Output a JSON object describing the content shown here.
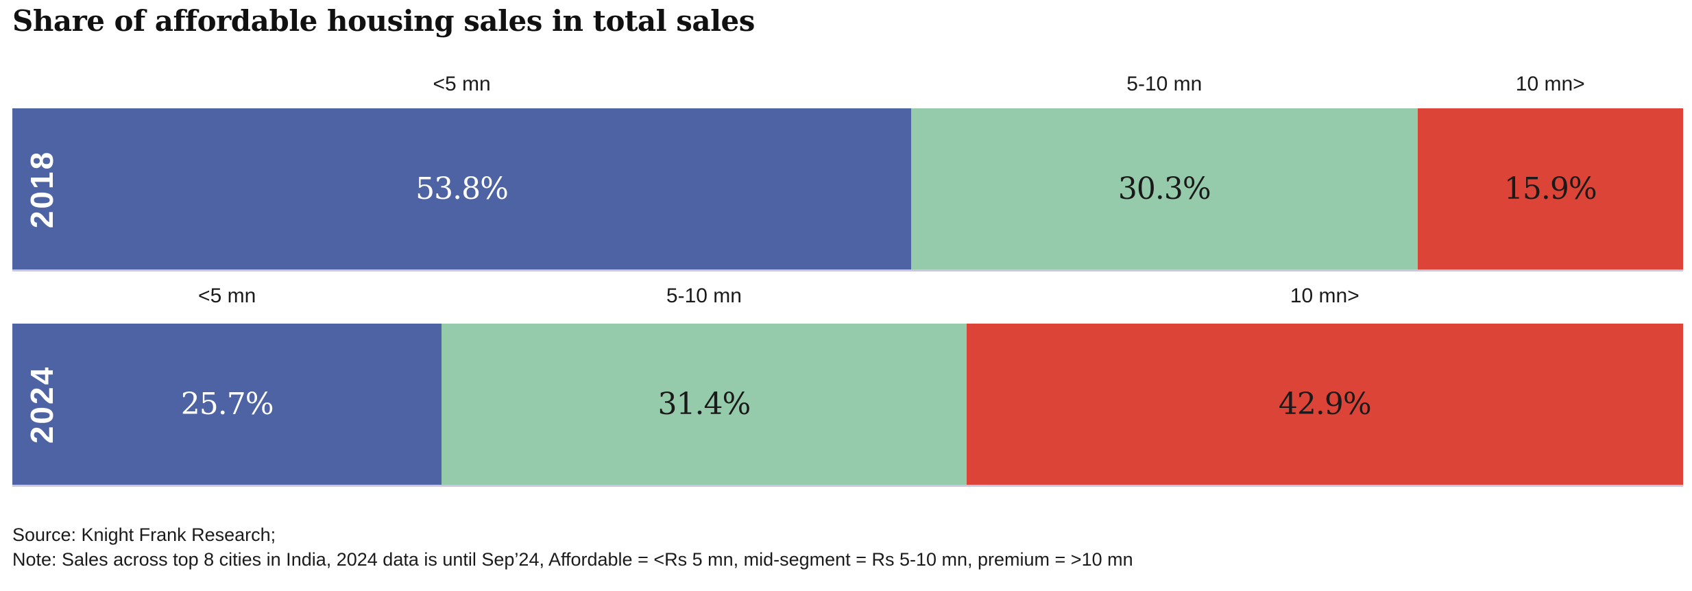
{
  "title": "Share of affordable housing sales in total sales",
  "palette": {
    "affordable_blue": "#4e63a4",
    "mid_segment_green": "#95cbaa",
    "premium_red": "#dc4437",
    "text_dark": "#1a1a1a",
    "text_light": "#ffffff",
    "baseline_line": "#ccc6df"
  },
  "chart_data": {
    "type": "bar",
    "variant": "horizontal-stacked-100pct",
    "title": "Share of affordable housing sales in total sales",
    "categories": [
      "2018",
      "2024"
    ],
    "series": [
      {
        "name": "<5 mn",
        "values": [
          53.8,
          25.7
        ],
        "color": "#4e63a4"
      },
      {
        "name": "5-10 mn",
        "values": [
          30.3,
          31.4
        ],
        "color": "#95cbaa"
      },
      {
        "name": "10 mn>",
        "values": [
          15.9,
          42.9
        ],
        "color": "#dc4437"
      }
    ],
    "value_suffix": "%",
    "xlim": [
      0,
      100
    ],
    "grid": false,
    "legend_position": "segment labels above each bar",
    "data_labels": "inside segments, centered"
  },
  "bars": [
    {
      "year": "2018",
      "segments": [
        {
          "bucket": "<5 mn",
          "value": 53.8,
          "label": "53.8%",
          "color": "#4e63a4",
          "text_color": "#ffffff"
        },
        {
          "bucket": "5-10 mn",
          "value": 30.3,
          "label": "30.3%",
          "color": "#95cbaa",
          "text_color": "#1a1a1a"
        },
        {
          "bucket": "10 mn>",
          "value": 15.9,
          "label": "15.9%",
          "color": "#dc4437",
          "text_color": "#1a1a1a"
        }
      ]
    },
    {
      "year": "2024",
      "segments": [
        {
          "bucket": "<5 mn",
          "value": 25.7,
          "label": "25.7%",
          "color": "#4e63a4",
          "text_color": "#ffffff"
        },
        {
          "bucket": "5-10 mn",
          "value": 31.4,
          "label": "31.4%",
          "color": "#95cbaa",
          "text_color": "#1a1a1a"
        },
        {
          "bucket": "10 mn>",
          "value": 42.9,
          "label": "42.9%",
          "color": "#dc4437",
          "text_color": "#1a1a1a"
        }
      ]
    }
  ],
  "footer": {
    "source": "Source: Knight Frank Research;",
    "note": "Note: Sales across top 8 cities in India, 2024 data is until Sep’24, Affordable = <Rs 5 mn, mid-segment = Rs 5-10 mn, premium = >10 mn"
  }
}
